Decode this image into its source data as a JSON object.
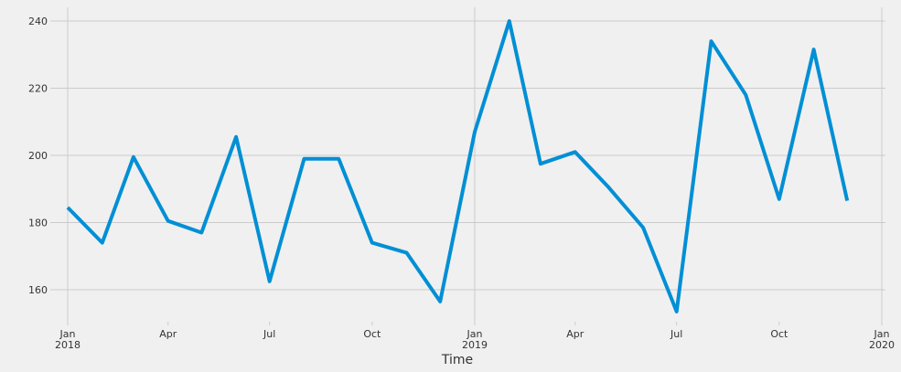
{
  "chart_data": {
    "type": "line",
    "xlabel": "Time",
    "ylabel": "",
    "ylim": [
      150,
      244
    ],
    "y_ticks": [
      160,
      180,
      200,
      220,
      240
    ],
    "x_ticks": [
      {
        "date": "2018-01-01",
        "label": "Jan",
        "sublabel": "2018"
      },
      {
        "date": "2018-04-01",
        "label": "Apr",
        "sublabel": ""
      },
      {
        "date": "2018-07-01",
        "label": "Jul",
        "sublabel": ""
      },
      {
        "date": "2018-10-01",
        "label": "Oct",
        "sublabel": ""
      },
      {
        "date": "2019-01-01",
        "label": "Jan",
        "sublabel": "2019"
      },
      {
        "date": "2019-04-01",
        "label": "Apr",
        "sublabel": ""
      },
      {
        "date": "2019-07-01",
        "label": "Jul",
        "sublabel": ""
      },
      {
        "date": "2019-10-01",
        "label": "Oct",
        "sublabel": ""
      },
      {
        "date": "2020-01-01",
        "label": "Jan",
        "sublabel": "2020"
      }
    ],
    "major_grid_dates": [
      "2018-01-01",
      "2019-01-01",
      "2020-01-01"
    ],
    "grid": true,
    "series": [
      {
        "color": "#008fd5",
        "x": [
          "2018-01-01",
          "2018-02-01",
          "2018-03-01",
          "2018-04-01",
          "2018-05-01",
          "2018-06-01",
          "2018-07-01",
          "2018-08-01",
          "2018-09-01",
          "2018-10-01",
          "2018-11-01",
          "2018-12-01",
          "2019-01-01",
          "2019-02-01",
          "2019-03-01",
          "2019-04-01",
          "2019-05-01",
          "2019-06-01",
          "2019-07-01",
          "2019-08-01",
          "2019-09-01",
          "2019-10-01",
          "2019-11-01",
          "2019-12-01"
        ],
        "values": [
          184.5,
          174,
          199.5,
          180.5,
          177,
          205.5,
          162.5,
          199,
          199,
          174,
          171,
          156.5,
          207,
          240,
          197.5,
          201,
          190.5,
          178.5,
          153.5,
          234,
          218,
          187,
          231.5,
          186.5
        ]
      }
    ]
  }
}
